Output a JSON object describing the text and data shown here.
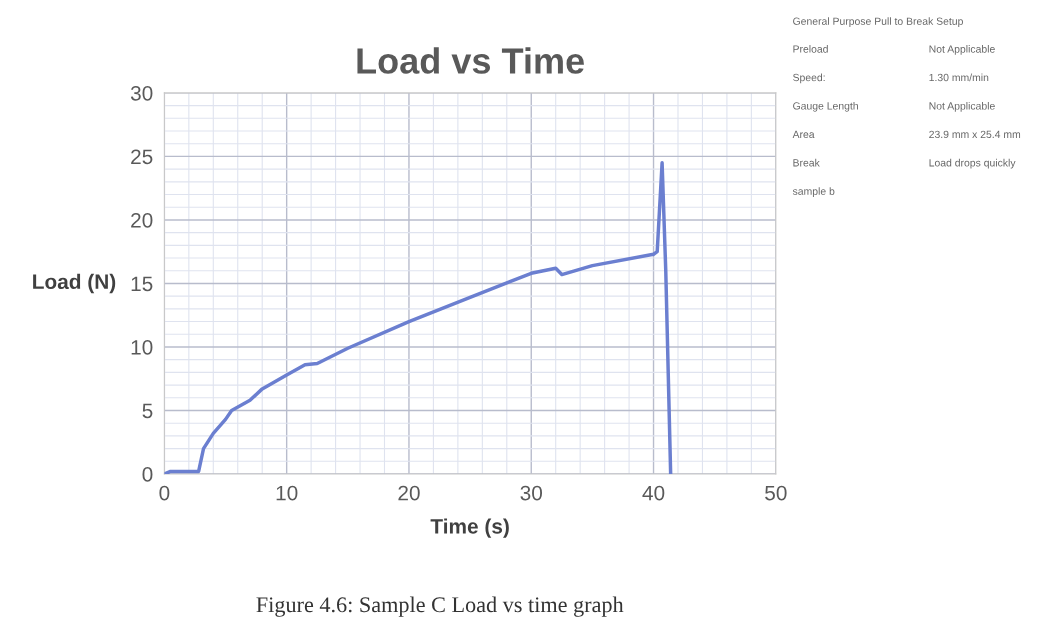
{
  "chart_data": {
    "type": "line",
    "title": "Load vs Time",
    "xlabel": "Time (s)",
    "ylabel": "Load (N)",
    "x": [
      0,
      0.5,
      2.8,
      3.2,
      4,
      5,
      5.5,
      7,
      8,
      10,
      11.5,
      12.5,
      15,
      20,
      25,
      30,
      32,
      32.5,
      35,
      40,
      40.3,
      40.7,
      41,
      41.4
    ],
    "series": [
      {
        "color": "#6b7fd0",
        "values": [
          0,
          0.2,
          0.2,
          2,
          3.2,
          4.3,
          5,
          5.8,
          6.7,
          7.8,
          8.6,
          8.7,
          9.9,
          12,
          13.9,
          15.8,
          16.2,
          15.7,
          16.4,
          17.3,
          17.5,
          24.5,
          16,
          0
        ]
      }
    ],
    "xlim": [
      0,
      50
    ],
    "xticks": [
      0,
      10,
      20,
      30,
      40,
      50
    ],
    "ylim": [
      0,
      30
    ],
    "yticks": [
      0,
      5,
      10,
      15,
      20,
      25,
      30
    ],
    "grid": true,
    "annotations": [
      "General Purpose Pull to Break Setup",
      "Preload",
      "Not Applicable",
      "Speed:",
      "1.30 mm/min",
      "Gauge Length",
      "Not Applicable",
      "Area",
      "23.9 mm x 25.4 mm",
      "Break",
      "Load drops quickly",
      "sample b",
      "Figure 4.6: Sample C Load vs time graph"
    ]
  }
}
